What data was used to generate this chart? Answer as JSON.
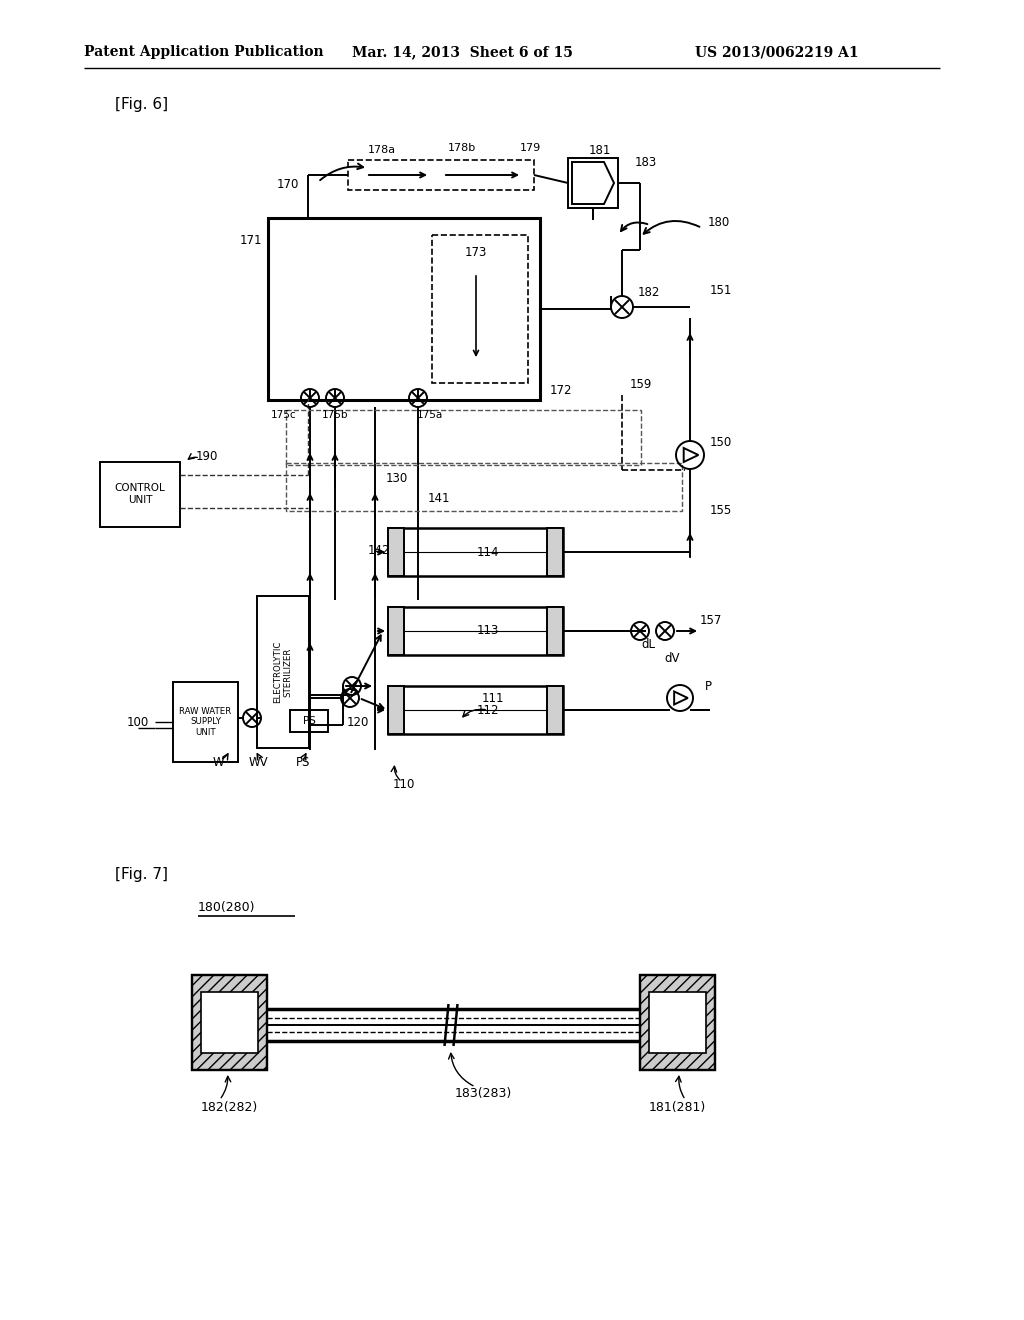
{
  "bg": "#ffffff",
  "header_left": "Patent Application Publication",
  "header_mid": "Mar. 14, 2013  Sheet 6 of 15",
  "header_right": "US 2013/0062219 A1",
  "fig6_label": "[Fig. 6]",
  "fig7_label": "[Fig. 7]",
  "fig7_ref": "180(280)",
  "ref181": "181",
  "ref182": "182",
  "ref183": "183",
  "ref180": "180",
  "ref179": "179",
  "ref178b": "178b",
  "ref178a": "178a",
  "ref173": "173",
  "ref172": "172",
  "ref171": "171",
  "ref170": "170",
  "ref175a": "175a",
  "ref175b": "175b",
  "ref175c": "175c",
  "ref159": "159",
  "ref151": "151",
  "ref150": "150",
  "ref155": "155",
  "ref157": "157",
  "ref190": "190",
  "ref130": "130",
  "ref141": "141",
  "ref142": "142",
  "ref120": "120",
  "ref114": "114",
  "ref113": "113",
  "ref112": "112",
  "ref111": "111",
  "ref110": "110",
  "ref100": "100",
  "refdL": "dL",
  "refdV": "dV",
  "refP": "P",
  "refW": "W",
  "refWV": "WV",
  "refPS": "PS",
  "ref181_281": "181(281)",
  "ref182_282": "182(282)",
  "ref183_283": "183(283)"
}
